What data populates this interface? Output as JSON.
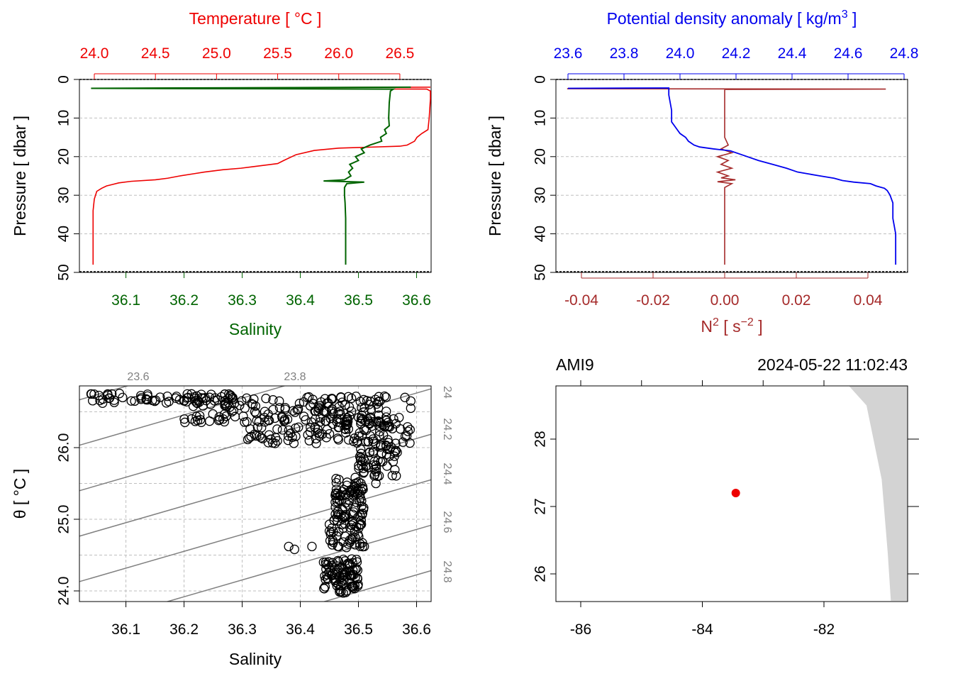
{
  "colors": {
    "temperature": "#ee0000",
    "salinity": "#006400",
    "density": "#0000ee",
    "n2": "#a52a2a",
    "isopycnal": "#808080",
    "grid": "#bfbfbf",
    "coast": "#d3d3d3",
    "station": "#ee0000",
    "axis": "#000000"
  },
  "chart_data": [
    {
      "id": "profile-ts",
      "type": "line",
      "title": "",
      "top_axis": {
        "label": "Temperature [ °C ]",
        "range": [
          24.0,
          26.75
        ],
        "ticks": [
          "24.0",
          "24.5",
          "25.0",
          "25.5",
          "26.0",
          "26.5"
        ]
      },
      "bottom_axis": {
        "label": "Salinity",
        "range": [
          36.02,
          36.625
        ],
        "ticks": [
          "36.1",
          "36.2",
          "36.3",
          "36.4",
          "36.5",
          "36.6"
        ]
      },
      "y_axis": {
        "label": "Pressure [ dbar ]",
        "range": [
          0,
          50
        ],
        "inverted": true,
        "ticks": [
          "0",
          "10",
          "20",
          "30",
          "40",
          "50"
        ]
      },
      "series": [
        {
          "name": "Temperature",
          "axis": "top",
          "points": [
            [
              26.75,
              2.0
            ],
            [
              24.0,
              2.3
            ],
            [
              26.72,
              2.5
            ],
            [
              26.75,
              3
            ],
            [
              26.75,
              5
            ],
            [
              26.74,
              10
            ],
            [
              26.73,
              13
            ],
            [
              26.68,
              14
            ],
            [
              26.64,
              15
            ],
            [
              26.62,
              16
            ],
            [
              26.56,
              17
            ],
            [
              26.5,
              17.3
            ],
            [
              26.2,
              17.6
            ],
            [
              26.0,
              17.8
            ],
            [
              25.8,
              18.4
            ],
            [
              25.65,
              19.5
            ],
            [
              25.55,
              21
            ],
            [
              25.5,
              21.8
            ],
            [
              25.3,
              22.6
            ],
            [
              25.2,
              23.0
            ],
            [
              25.05,
              23.4
            ],
            [
              24.9,
              24.0
            ],
            [
              24.82,
              24.4
            ],
            [
              24.7,
              25.0
            ],
            [
              24.6,
              25.6
            ],
            [
              24.5,
              26.0
            ],
            [
              24.3,
              26.4
            ],
            [
              24.2,
              26.8
            ],
            [
              24.15,
              27.2
            ],
            [
              24.1,
              27.6
            ],
            [
              24.06,
              28.2
            ],
            [
              24.02,
              29
            ],
            [
              24.0,
              31
            ],
            [
              23.99,
              34
            ],
            [
              23.99,
              40
            ],
            [
              23.99,
              48
            ]
          ]
        },
        {
          "name": "Salinity",
          "axis": "bottom",
          "points": [
            [
              36.59,
              2.0
            ],
            [
              36.04,
              2.3
            ],
            [
              36.56,
              2.5
            ],
            [
              36.555,
              3
            ],
            [
              36.553,
              6
            ],
            [
              36.552,
              10
            ],
            [
              36.553,
              12
            ],
            [
              36.545,
              13
            ],
            [
              36.548,
              14
            ],
            [
              36.538,
              15
            ],
            [
              36.54,
              16
            ],
            [
              36.52,
              17
            ],
            [
              36.505,
              18
            ],
            [
              36.51,
              19
            ],
            [
              36.495,
              20
            ],
            [
              36.5,
              21
            ],
            [
              36.485,
              22
            ],
            [
              36.49,
              23
            ],
            [
              36.483,
              24
            ],
            [
              36.487,
              25
            ],
            [
              36.476,
              26
            ],
            [
              36.44,
              26.3
            ],
            [
              36.51,
              26.6
            ],
            [
              36.48,
              27
            ],
            [
              36.476,
              28
            ],
            [
              36.476,
              30
            ],
            [
              36.477,
              32
            ],
            [
              36.478,
              36
            ],
            [
              36.478,
              40
            ],
            [
              36.478,
              44
            ],
            [
              36.478,
              48
            ]
          ]
        }
      ]
    },
    {
      "id": "profile-density",
      "type": "line",
      "title": "",
      "top_axis": {
        "label": "Potential density anomaly [ kg/m3 ]",
        "range": [
          23.6,
          24.8
        ],
        "ticks": [
          "23.6",
          "23.8",
          "24.0",
          "24.2",
          "24.4",
          "24.6",
          "24.8"
        ]
      },
      "bottom_axis": {
        "label": "N2 [ s-2 ]",
        "range": [
          -0.048,
          0.049
        ],
        "ticks": [
          "-0.04",
          "-0.02",
          "0.00",
          "0.02",
          "0.04"
        ]
      },
      "y_axis": {
        "label": "Pressure [ dbar ]",
        "range": [
          0,
          50
        ],
        "inverted": true,
        "ticks": [
          "0",
          "10",
          "20",
          "30",
          "40",
          "50"
        ]
      },
      "series": [
        {
          "name": "Potential density anomaly",
          "axis": "top",
          "points": [
            [
              23.6,
              2.3
            ],
            [
              23.96,
              2.2
            ],
            [
              23.96,
              4
            ],
            [
              23.97,
              8
            ],
            [
              23.97,
              11
            ],
            [
              23.98,
              12
            ],
            [
              23.99,
              13
            ],
            [
              24.0,
              14
            ],
            [
              24.02,
              15
            ],
            [
              24.03,
              16
            ],
            [
              24.05,
              17
            ],
            [
              24.07,
              17.5
            ],
            [
              24.12,
              18
            ],
            [
              24.18,
              18.5
            ],
            [
              24.22,
              19.5
            ],
            [
              24.28,
              21
            ],
            [
              24.33,
              22
            ],
            [
              24.38,
              23
            ],
            [
              24.42,
              24
            ],
            [
              24.46,
              24.5
            ],
            [
              24.5,
              25
            ],
            [
              24.55,
              25.6
            ],
            [
              24.58,
              26.2
            ],
            [
              24.62,
              26.6
            ],
            [
              24.68,
              27
            ],
            [
              24.7,
              27.6
            ],
            [
              24.73,
              28.2
            ],
            [
              24.74,
              28.8
            ],
            [
              24.75,
              30
            ],
            [
              24.76,
              32
            ],
            [
              24.76,
              36
            ],
            [
              24.77,
              40
            ],
            [
              24.77,
              44
            ],
            [
              24.77,
              48
            ]
          ]
        },
        {
          "name": "N2",
          "axis": "bottom",
          "points": [
            [
              -0.044,
              2.4
            ],
            [
              0.045,
              2.5
            ],
            [
              0.0,
              2.6
            ],
            [
              0.0,
              10
            ],
            [
              0.0,
              15
            ],
            [
              0.001,
              17
            ],
            [
              -0.001,
              18
            ],
            [
              0.002,
              19
            ],
            [
              -0.002,
              20
            ],
            [
              0.001,
              21
            ],
            [
              -0.001,
              22
            ],
            [
              0.002,
              23
            ],
            [
              -0.002,
              24
            ],
            [
              0.001,
              25
            ],
            [
              -0.001,
              25.5
            ],
            [
              0.003,
              26
            ],
            [
              -0.002,
              26.5
            ],
            [
              0.002,
              27
            ],
            [
              0.0,
              28
            ],
            [
              0.0,
              30
            ],
            [
              0.0,
              40
            ],
            [
              0.0,
              48
            ]
          ]
        }
      ]
    },
    {
      "id": "ts-diagram",
      "type": "scatter",
      "xlabel": "Salinity",
      "ylabel": "θ [ °C ]",
      "xlim": [
        36.02,
        36.625
      ],
      "ylim": [
        23.95,
        26.8
      ],
      "x_ticks": [
        "36.1",
        "36.2",
        "36.3",
        "36.4",
        "36.5",
        "36.6"
      ],
      "y_ticks": [
        "24.0",
        "25.0",
        "26.0"
      ],
      "isopycnal_labels": [
        "23.6",
        "23.8",
        "24",
        "24.2",
        "24.4",
        "24.6",
        "24.8"
      ],
      "clusters": [
        {
          "s": [
            36.04,
            36.3
          ],
          "t": [
            26.62,
            26.76
          ],
          "n": 70
        },
        {
          "s": [
            36.2,
            36.55
          ],
          "t": [
            26.35,
            26.72
          ],
          "n": 150
        },
        {
          "s": [
            36.3,
            36.59
          ],
          "t": [
            26.05,
            26.42
          ],
          "n": 120
        },
        {
          "s": [
            36.5,
            36.57
          ],
          "t": [
            25.6,
            26.1
          ],
          "n": 60
        },
        {
          "s": [
            36.46,
            36.51
          ],
          "t": [
            25.05,
            25.6
          ],
          "n": 70
        },
        {
          "s": [
            36.45,
            36.51
          ],
          "t": [
            24.6,
            25.05
          ],
          "n": 60
        },
        {
          "s": [
            36.44,
            36.5
          ],
          "t": [
            23.97,
            24.45
          ],
          "n": 90
        }
      ],
      "extra_points": [
        [
          36.38,
          24.62
        ],
        [
          36.39,
          24.58
        ],
        [
          36.42,
          24.62
        ],
        [
          36.51,
          24.62
        ],
        [
          36.59,
          26.55
        ],
        [
          36.59,
          26.65
        ],
        [
          36.58,
          26.7
        ],
        [
          36.53,
          25.75
        ],
        [
          36.53,
          25.5
        ],
        [
          36.44,
          24.4
        ]
      ]
    },
    {
      "id": "station-map",
      "type": "scatter",
      "station_label": "AMI9",
      "datetime": "2024-05-22 11:02:43",
      "xlim": [
        -86.45,
        -80.5
      ],
      "ylim": [
        25.6,
        28.8
      ],
      "x_ticks": [
        "-86",
        "-84",
        "-82"
      ],
      "y_ticks": [
        "26",
        "27",
        "28"
      ],
      "station": {
        "lon": -83.45,
        "lat": 27.2
      },
      "coastline": [
        [
          -81.6,
          28.8
        ],
        [
          -81.3,
          28.5
        ],
        [
          -81.05,
          27.4
        ],
        [
          -80.95,
          26.3
        ],
        [
          -80.9,
          25.6
        ],
        [
          -80.5,
          25.6
        ],
        [
          -80.5,
          28.8
        ]
      ]
    }
  ]
}
